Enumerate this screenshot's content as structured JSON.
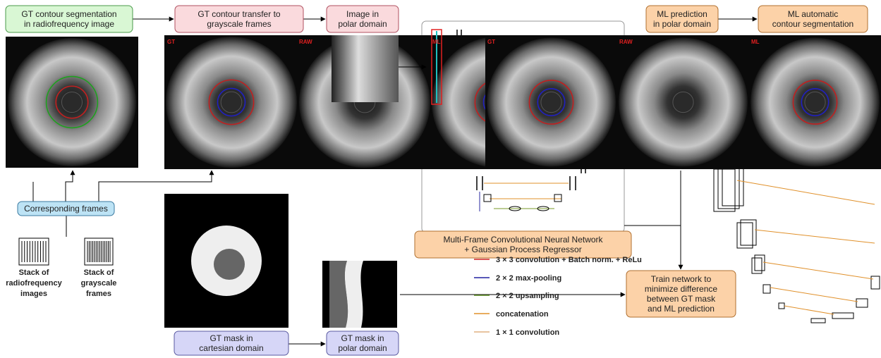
{
  "boxes": {
    "gt_rf": [
      "GT contour segmentation",
      "in radiofrequency image"
    ],
    "gt_transfer": [
      "GT contour transfer to",
      "grayscale frames"
    ],
    "polar_image": [
      "Image in",
      "polar domain"
    ],
    "ml_polar": [
      "ML prediction",
      "in polar domain"
    ],
    "ml_auto": [
      "ML automatic",
      "contour segmentation"
    ],
    "corresponding": [
      "Corresponding frames"
    ],
    "mask_cart": [
      "GT mask in",
      "cartesian domain"
    ],
    "mask_polar": [
      "GT mask in",
      "polar domain"
    ],
    "network": [
      "Multi-Frame Convolutional Neural Network",
      "+ Gaussian Process Regressor"
    ],
    "train": [
      "Train network to",
      "minimize difference",
      "between GT mask",
      "and ML prediction"
    ]
  },
  "stacks": {
    "rf": [
      "Stack of",
      "radiofrequency",
      "images"
    ],
    "gray": [
      "Stack of",
      "grayscale",
      "frames"
    ]
  },
  "frame_labels": [
    "GT",
    "RAW",
    "ML",
    "GT",
    "RAW",
    "ML"
  ],
  "legend": [
    "3 × 3 convolution + Batch norm. + ReLu",
    "2 × 2 max-pooling",
    "2 × 2 upsampling",
    "concatenation",
    "1 × 1 convolution"
  ]
}
